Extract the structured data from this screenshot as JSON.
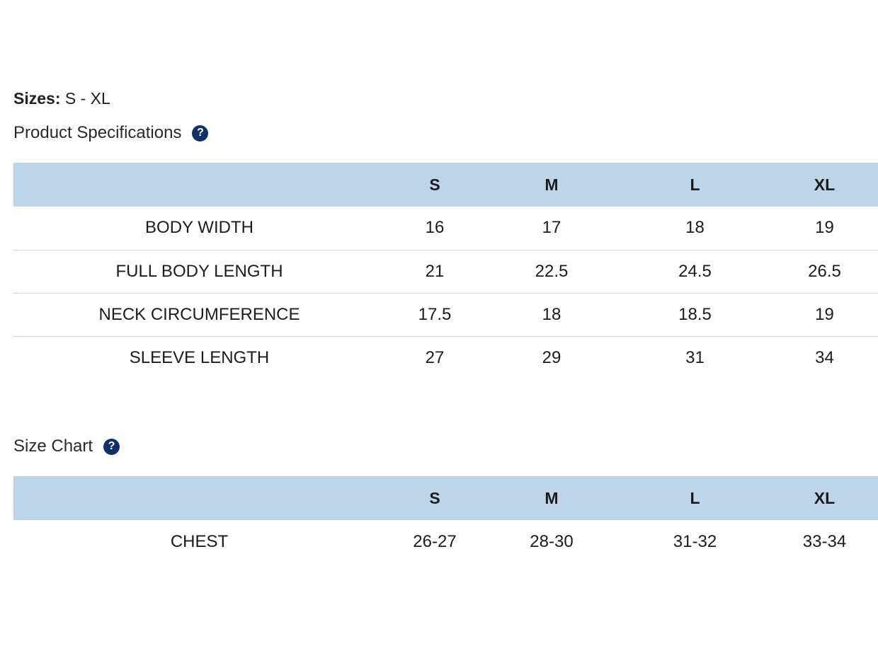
{
  "sizes": {
    "label": "Sizes:",
    "value": " S - XL"
  },
  "specifications": {
    "title": "Product Specifications",
    "help_icon": "question-circle-icon",
    "columns": [
      "",
      "S",
      "M",
      "L",
      "XL"
    ],
    "rows": [
      {
        "label": "BODY WIDTH",
        "values": [
          "16",
          "17",
          "18",
          "19"
        ]
      },
      {
        "label": "FULL BODY LENGTH",
        "values": [
          "21",
          "22.5",
          "24.5",
          "26.5"
        ]
      },
      {
        "label": "NECK CIRCUMFERENCE",
        "values": [
          "17.5",
          "18",
          "18.5",
          "19"
        ]
      },
      {
        "label": "SLEEVE LENGTH",
        "values": [
          "27",
          "29",
          "31",
          "34"
        ]
      }
    ]
  },
  "size_chart": {
    "title": "Size Chart",
    "help_icon": "question-circle-icon",
    "columns": [
      "",
      "S",
      "M",
      "L",
      "XL"
    ],
    "rows": [
      {
        "label": "CHEST",
        "values": [
          "26-27",
          "28-30",
          "31-32",
          "33-34"
        ]
      }
    ]
  },
  "colors": {
    "header_bg": "#bcd5e8",
    "icon_bg": "#0f3166",
    "row_divider": "#d6d6d6"
  }
}
